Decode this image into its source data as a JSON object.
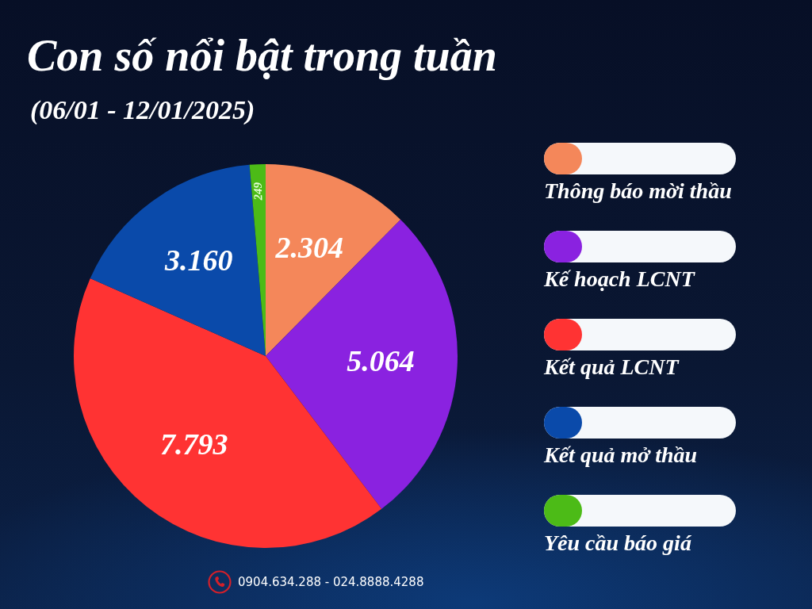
{
  "chart_data": {
    "type": "pie",
    "title": "Con số nổi bật trong tuần",
    "subtitle": "(06/01 - 12/01/2025)",
    "categories": [
      "Thông báo mời thầu",
      "Kế hoạch LCNT",
      "Kết quả LCNT",
      "Kết quả mở thầu",
      "Yêu cầu báo giá"
    ],
    "values": [
      2304,
      5064,
      7793,
      3160,
      249
    ],
    "colors": [
      "#f4875a",
      "#8a22e0",
      "#ff3333",
      "#0a4aaa",
      "#4cbb17"
    ],
    "value_labels": [
      "2.304",
      "5.064",
      "7.793",
      "3.160",
      "249"
    ],
    "legend": "right",
    "annotations": [
      "0904.634.288 - 024.8888.4288"
    ]
  }
}
